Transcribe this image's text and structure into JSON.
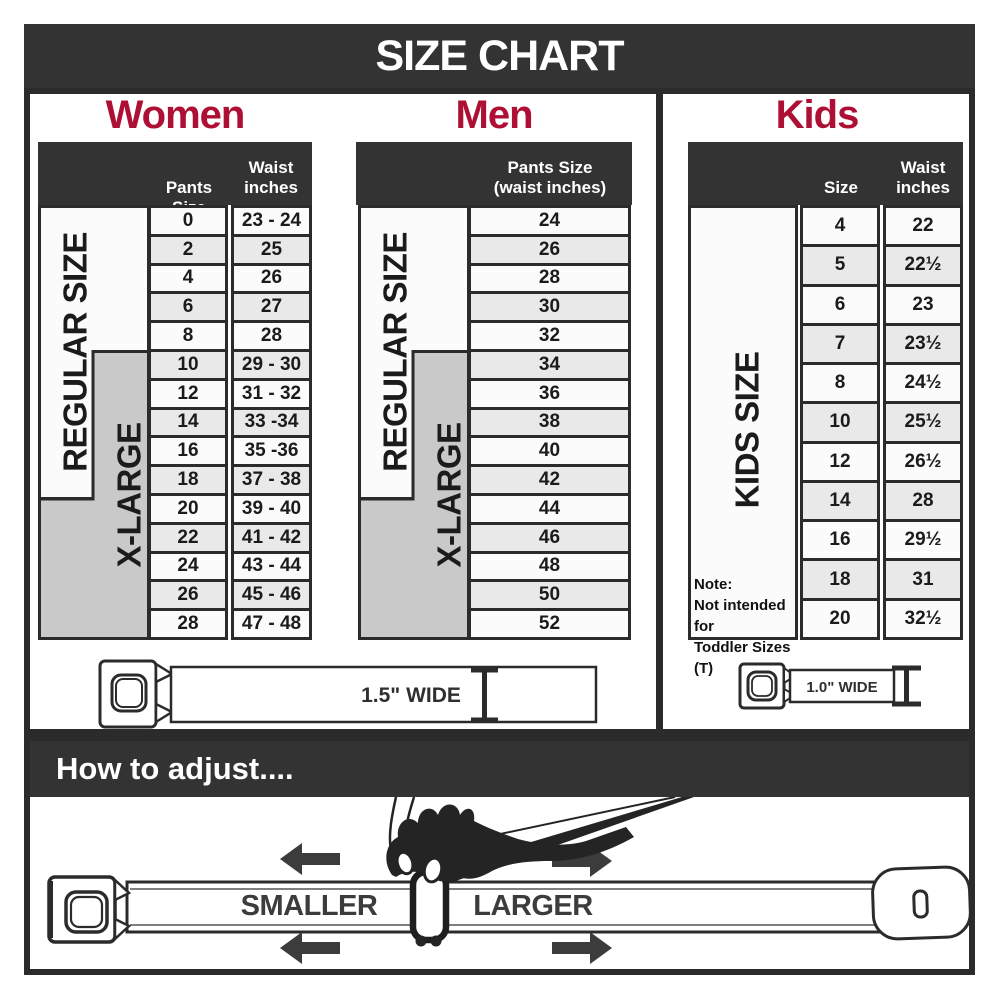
{
  "title": "SIZE CHART",
  "sections": {
    "women": {
      "heading": "Women",
      "col1_header": "Pants Size",
      "waist_header_line1": "Waist",
      "waist_header_line2": "inches",
      "regular_label": "REGULAR SIZE",
      "xlarge_label": "X-LARGE"
    },
    "men": {
      "heading": "Men",
      "header_line1": "Pants Size",
      "header_line2": "(waist inches)",
      "regular_label": "REGULAR SIZE",
      "xlarge_label": "X-LARGE"
    },
    "kids": {
      "heading": "Kids",
      "col1_header": "Size",
      "waist_header_line1": "Waist",
      "waist_header_line2": "inches",
      "side_label": "KIDS SIZE",
      "note_line1": "Note:",
      "note_line2": "Not intended for",
      "note_line3": "Toddler Sizes (T)"
    }
  },
  "belts": {
    "adult_width_label": "1.5\" WIDE",
    "kids_width_label": "1.0\" WIDE"
  },
  "adjust": {
    "heading": "How to adjust....",
    "smaller_label": "SMALLER",
    "larger_label": "LARGER"
  },
  "colors": {
    "banner_dark": "#333333",
    "heading_red": "#ad1034",
    "xlarge_gray": "#c9c9c9",
    "row_alt": "#e9e9e9",
    "border_ink": "#2b2b2b",
    "label_gray": "#3c3c3c"
  },
  "chart_data": [
    {
      "type": "table",
      "title": "Women",
      "columns": [
        "Pants Size",
        "Waist inches"
      ],
      "pants_sizes": [
        "0",
        "2",
        "4",
        "6",
        "8",
        "10",
        "12",
        "14",
        "16",
        "18",
        "20",
        "22",
        "24",
        "26",
        "28"
      ],
      "waist_inches": [
        "23 - 24",
        "25",
        "26",
        "27",
        "28",
        "29 - 30",
        "31 - 32",
        "33 -34",
        "35 -36",
        "37 - 38",
        "39 - 40",
        "41 - 42",
        "43 - 44",
        "45 - 46",
        "47 - 48"
      ],
      "size_groups": {
        "regular_size_rows": "0-18",
        "x_large_rows": "10-28"
      }
    },
    {
      "type": "table",
      "title": "Men",
      "columns": [
        "Pants Size (waist inches)"
      ],
      "pants_sizes": [
        "24",
        "26",
        "28",
        "30",
        "32",
        "34",
        "36",
        "38",
        "40",
        "42",
        "44",
        "46",
        "48",
        "50",
        "52"
      ],
      "size_groups": {
        "regular_size_rows": "24-42",
        "x_large_rows": "34-52"
      }
    },
    {
      "type": "table",
      "title": "Kids",
      "columns": [
        "Size",
        "Waist inches"
      ],
      "sizes": [
        "4",
        "5",
        "6",
        "7",
        "8",
        "10",
        "12",
        "14",
        "16",
        "18",
        "20"
      ],
      "waist_inches": [
        "22",
        "22½",
        "23",
        "23½",
        "24½",
        "25½",
        "26½",
        "28",
        "29½",
        "31",
        "32½"
      ]
    }
  ]
}
